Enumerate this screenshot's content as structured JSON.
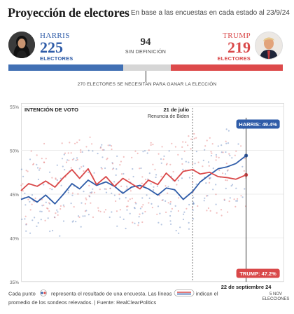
{
  "header": {
    "title": "Proyección de electores",
    "subtitle": "En base a las encuestas en cada estado al 23/9/24"
  },
  "harris": {
    "name": "HARRIS",
    "electors": "225",
    "label": "ELECTORES"
  },
  "trump": {
    "name": "TRUMP",
    "electors": "219",
    "label": "ELECTORES"
  },
  "undecided": {
    "count": "94",
    "label": "SIN DEFINICIÓN"
  },
  "bar_note": "270 ELECTORES SE NECESITAN PARA GANAR LA ELECCIÓN",
  "colors": {
    "harris": "#2f5ca8",
    "trump": "#d94849",
    "undecided": "#d6d6d6"
  },
  "chart_data": {
    "type": "line",
    "title": "INTENCIÓN DE VOTO",
    "ylim": [
      35,
      55
    ],
    "yticks": [
      "35%",
      "40%",
      "45%",
      "50%",
      "55%"
    ],
    "x_range": [
      "2024-01-01",
      "2024-11-05"
    ],
    "series": [
      {
        "name": "Harris",
        "color": "#2f5ca8",
        "end_label": "HARRIS: 49.4%",
        "x": [
          "2024-01-01",
          "2024-01-10",
          "2024-01-20",
          "2024-01-30",
          "2024-02-10",
          "2024-02-20",
          "2024-03-01",
          "2024-03-10",
          "2024-03-20",
          "2024-03-30",
          "2024-04-10",
          "2024-04-20",
          "2024-04-30",
          "2024-05-10",
          "2024-05-20",
          "2024-05-30",
          "2024-06-10",
          "2024-06-20",
          "2024-06-30",
          "2024-07-10",
          "2024-07-21",
          "2024-07-30",
          "2024-08-10",
          "2024-08-20",
          "2024-08-30",
          "2024-09-10",
          "2024-09-22"
        ],
        "values": [
          44.4,
          44.7,
          44.1,
          44.9,
          43.9,
          45.0,
          46.2,
          45.6,
          46.6,
          46.0,
          46.4,
          45.9,
          45.1,
          45.8,
          46.0,
          45.6,
          44.9,
          45.7,
          45.5,
          44.4,
          45.3,
          46.4,
          47.2,
          47.9,
          48.1,
          48.5,
          49.4
        ]
      },
      {
        "name": "Trump",
        "color": "#d94849",
        "end_label": "TRUMP: 47.2%",
        "x": [
          "2024-01-01",
          "2024-01-10",
          "2024-01-20",
          "2024-01-30",
          "2024-02-10",
          "2024-02-20",
          "2024-03-01",
          "2024-03-10",
          "2024-03-20",
          "2024-03-30",
          "2024-04-10",
          "2024-04-20",
          "2024-04-30",
          "2024-05-10",
          "2024-05-20",
          "2024-05-30",
          "2024-06-10",
          "2024-06-20",
          "2024-06-30",
          "2024-07-10",
          "2024-07-21",
          "2024-07-30",
          "2024-08-10",
          "2024-08-20",
          "2024-08-30",
          "2024-09-10",
          "2024-09-22"
        ],
        "values": [
          45.4,
          46.2,
          45.9,
          46.5,
          45.8,
          46.9,
          47.8,
          46.8,
          47.9,
          46.1,
          47.0,
          45.9,
          46.8,
          46.2,
          45.6,
          46.6,
          46.1,
          47.4,
          46.5,
          47.6,
          47.8,
          47.3,
          47.5,
          47.0,
          46.9,
          46.7,
          47.2
        ]
      }
    ],
    "annotations": [
      {
        "x": "2024-07-21",
        "date_label": "21 de julio",
        "text": "Renuncia de Biden"
      }
    ],
    "x_labels": [
      {
        "x": "2024-09-22",
        "text": "22 de septiembre 24"
      },
      {
        "x": "2024-11-05",
        "text": "5 NOV ELECCIONES"
      }
    ]
  },
  "footnote": {
    "part1": "Cada punto",
    "part2": "representa el resultado de una encuesta. Las líneas",
    "part3": "indican el promedio de los sondeos relevados. | Fuente: RealClearPolitics"
  }
}
